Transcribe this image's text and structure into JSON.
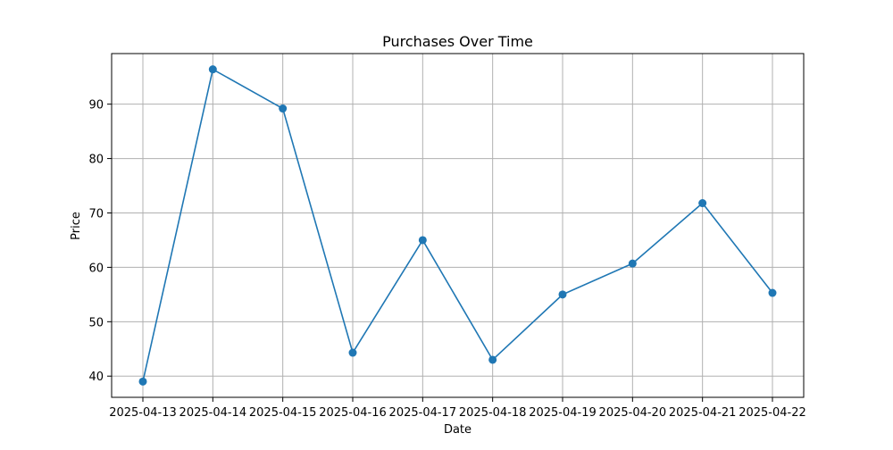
{
  "chart_data": {
    "type": "line",
    "title": "Purchases Over Time",
    "xlabel": "Date",
    "ylabel": "Price",
    "x": [
      "2025-04-13",
      "2025-04-14",
      "2025-04-15",
      "2025-04-16",
      "2025-04-17",
      "2025-04-18",
      "2025-04-19",
      "2025-04-20",
      "2025-04-21",
      "2025-04-22"
    ],
    "series": [
      {
        "values": [
          39.0,
          96.4,
          89.2,
          44.3,
          65.0,
          43.0,
          55.0,
          60.7,
          71.8,
          55.3
        ],
        "color": "#1f77b4",
        "marker": "circle"
      }
    ],
    "ylim": [
      36.1,
      99.3
    ],
    "yticks": [
      40,
      50,
      60,
      70,
      80,
      90
    ],
    "grid": true
  }
}
